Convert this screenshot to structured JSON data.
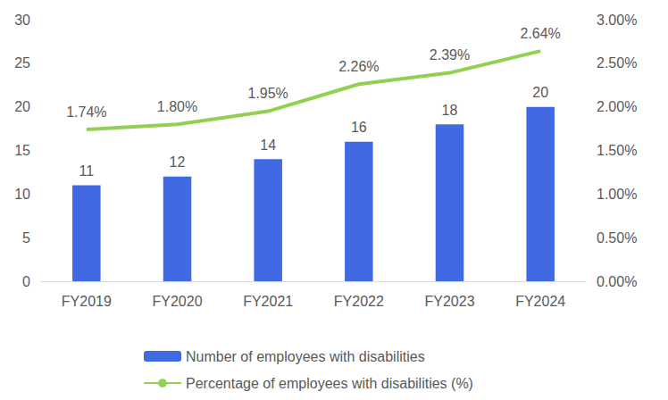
{
  "chart_data": {
    "type": "bar",
    "categories": [
      "FY2019",
      "FY2020",
      "FY2021",
      "FY2022",
      "FY2023",
      "FY2024"
    ],
    "ylim": [
      0,
      30
    ],
    "yticks": [
      0,
      5,
      10,
      15,
      20,
      25,
      30
    ],
    "y2lim": [
      0,
      3
    ],
    "y2ticks": [
      {
        "value": 0,
        "label": "0.00%"
      },
      {
        "value": 0.5,
        "label": "0.50%"
      },
      {
        "value": 1,
        "label": "1.00%"
      },
      {
        "value": 1.5,
        "label": "1.50%"
      },
      {
        "value": 2,
        "label": "2.00%"
      },
      {
        "value": 2.5,
        "label": "2.50%"
      },
      {
        "value": 3,
        "label": "3.00%"
      }
    ],
    "grid": false,
    "legend": "bottom",
    "data_labels": true,
    "series": [
      {
        "name": "Number of employees with disabilities",
        "type": "bar",
        "color": "#4169E1",
        "values": [
          11,
          12,
          14,
          16,
          18,
          20
        ]
      },
      {
        "name": "Percentage of employees with disabilities (%)",
        "type": "line",
        "axis": "y2",
        "color": "#92D050",
        "values": [
          1.74,
          1.8,
          1.95,
          2.26,
          2.39,
          2.64
        ],
        "value_labels": [
          "1.74%",
          "1.80%",
          "1.95%",
          "2.26%",
          "2.39%",
          "2.64%"
        ]
      }
    ]
  }
}
